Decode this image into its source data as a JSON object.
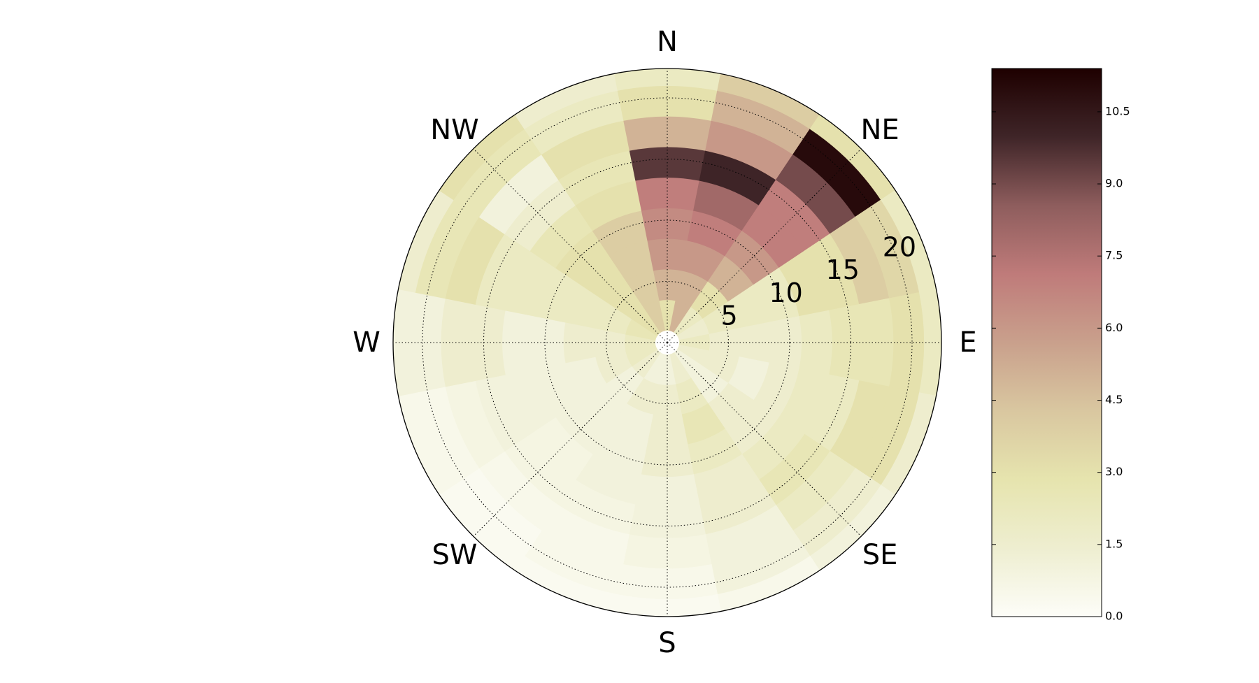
{
  "chart_data": {
    "type": "polar_heatmap",
    "thetaticks": [
      {
        "value": 0,
        "label": "N"
      },
      {
        "value": 45,
        "label": "NE"
      },
      {
        "value": 90,
        "label": "E"
      },
      {
        "value": 135,
        "label": "SE"
      },
      {
        "value": 180,
        "label": "S"
      },
      {
        "value": 225,
        "label": "SW"
      },
      {
        "value": 270,
        "label": "W"
      },
      {
        "value": 315,
        "label": "NW"
      }
    ],
    "rlim": [
      0,
      22.4
    ],
    "rticks": [
      5,
      10,
      15,
      20
    ],
    "grid": true,
    "theta": [
      0,
      22.5,
      45,
      67.5,
      90,
      112.5,
      135,
      157.5,
      180,
      202.5,
      225,
      247.5,
      270,
      292.5,
      315,
      337.5
    ],
    "r_edges": [
      1,
      3.5,
      6,
      8.5,
      11,
      13.5,
      16,
      18.5,
      21,
      22.4
    ],
    "values": [
      [
        3,
        5,
        6,
        6.5,
        7,
        9.5,
        5,
        3,
        2
      ],
      [
        5,
        5,
        6,
        7,
        8,
        10,
        6,
        5,
        4
      ],
      [
        2,
        3,
        5,
        6,
        7,
        7,
        9,
        11,
        3
      ],
      [
        1.5,
        2,
        2,
        2,
        3,
        3,
        4,
        3.5,
        2
      ],
      [
        2,
        1.5,
        1.5,
        1.5,
        2,
        2.5,
        2.5,
        3,
        2
      ],
      [
        1.5,
        1.5,
        1,
        1.5,
        2,
        2,
        3,
        3,
        1.5
      ],
      [
        1,
        1,
        1.5,
        1.5,
        2,
        2.5,
        2,
        1.5,
        1
      ],
      [
        1.5,
        2,
        2.5,
        2,
        1.5,
        1.5,
        1,
        1,
        0.5
      ],
      [
        1,
        1.5,
        1.5,
        1.5,
        1,
        1,
        0.8,
        0.5,
        0.3
      ],
      [
        1,
        1.5,
        1,
        1,
        1,
        0.8,
        0.5,
        0.5,
        0.3
      ],
      [
        1.5,
        1,
        1,
        1,
        0.8,
        0.8,
        0.5,
        0.3,
        0.3
      ],
      [
        2,
        1.5,
        1,
        1,
        1,
        1,
        0.8,
        0.5,
        0.5
      ],
      [
        2,
        1.5,
        1.5,
        1,
        1,
        1.5,
        1.5,
        1,
        1
      ],
      [
        2.5,
        2,
        2,
        2,
        2,
        2,
        3,
        2.5,
        1.5
      ],
      [
        3,
        3,
        3,
        3,
        2.5,
        1.5,
        1,
        2.5,
        3
      ],
      [
        4,
        4,
        4,
        4,
        3,
        2.5,
        3,
        2,
        1.5
      ]
    ],
    "colormap": [
      "#fdfdf8",
      "#eeeed0",
      "#e6e4ae",
      "#d9c7a0",
      "#c9a08c",
      "#bf7b7a",
      "#8e5d5d",
      "#3f2528",
      "#1e0000"
    ],
    "clim": [
      0,
      11.4
    ],
    "cticks": [
      {
        "value": 0,
        "label": "0.0"
      },
      1.5,
      {
        "value": 3,
        "label": "3.0"
      },
      4.5,
      {
        "value": 6,
        "label": "6.0"
      },
      7.5,
      {
        "value": 9,
        "label": "9.0"
      },
      10.5
    ]
  }
}
